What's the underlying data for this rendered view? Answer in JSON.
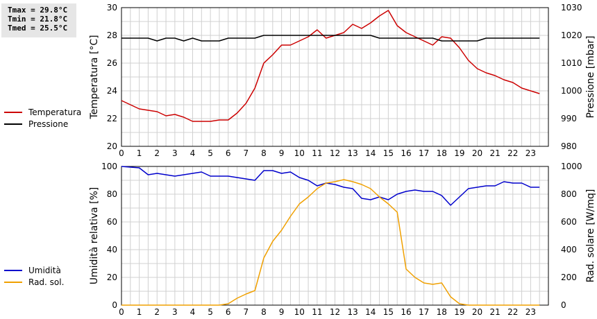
{
  "stats": {
    "tmax": "Tmax = 29.8°C",
    "tmin": "Tmin = 21.8°C",
    "tmed": "Tmed = 25.5°C"
  },
  "legend_top": [
    {
      "label": "Temperatura",
      "color": "#cc0000"
    },
    {
      "label": "Pressione",
      "color": "#000000"
    }
  ],
  "legend_bottom": [
    {
      "label": "Umidità",
      "color": "#0000cc"
    },
    {
      "label": "Rad. sol.",
      "color": "#f0a000"
    }
  ],
  "chart_data": [
    {
      "type": "line",
      "ylabel": "Temperatura [°C]",
      "y2label": "Pressione [mbar]",
      "xlim": [
        0,
        24
      ],
      "ylim": [
        20,
        30
      ],
      "y2lim": [
        980,
        1030
      ],
      "xticks": [
        "0",
        "1",
        "2",
        "3",
        "4",
        "5",
        "6",
        "7",
        "8",
        "9",
        "10",
        "11",
        "12",
        "13",
        "14",
        "15",
        "16",
        "17",
        "18",
        "19",
        "20",
        "21",
        "22",
        "23"
      ],
      "yticks": [
        "20",
        "22",
        "24",
        "26",
        "28",
        "30"
      ],
      "y2ticks": [
        "980",
        "990",
        "1000",
        "1010",
        "1020",
        "1030"
      ],
      "grid": true,
      "series": [
        {
          "name": "Temperatura",
          "axis": "left",
          "color": "#cc0000",
          "x": [
            0,
            0.5,
            1,
            1.5,
            2,
            2.5,
            3,
            3.5,
            4,
            4.5,
            5,
            5.5,
            6,
            6.5,
            7,
            7.5,
            8,
            8.5,
            9,
            9.5,
            10,
            10.5,
            11,
            11.5,
            12,
            12.5,
            13,
            13.5,
            14,
            14.5,
            15,
            15.5,
            16,
            16.5,
            17,
            17.5,
            18,
            18.5,
            19,
            19.5,
            20,
            20.5,
            21,
            21.5,
            22,
            22.5,
            23,
            23.5
          ],
          "values": [
            23.3,
            23.0,
            22.7,
            22.6,
            22.5,
            22.2,
            22.3,
            22.1,
            21.8,
            21.8,
            21.8,
            21.9,
            21.9,
            22.4,
            23.1,
            24.2,
            26.0,
            26.6,
            27.3,
            27.3,
            27.6,
            27.9,
            28.4,
            27.8,
            28.0,
            28.2,
            28.8,
            28.5,
            28.9,
            29.4,
            29.8,
            28.7,
            28.2,
            27.9,
            27.6,
            27.3,
            27.9,
            27.8,
            27.1,
            26.2,
            25.6,
            25.3,
            25.1,
            24.8,
            24.6,
            24.2,
            24.0,
            23.8
          ]
        },
        {
          "name": "Pressione",
          "axis": "right",
          "color": "#000000",
          "x": [
            0,
            1.5,
            2,
            2.5,
            3,
            3.5,
            4,
            4.5,
            5,
            5.5,
            6,
            6.5,
            7,
            7.5,
            8,
            8.5,
            9,
            9.5,
            10,
            10.5,
            11,
            11.5,
            12,
            12.5,
            13,
            13.5,
            14,
            14.5,
            15,
            15.5,
            16,
            16.5,
            17,
            17.5,
            18,
            18.5,
            19,
            19.5,
            20,
            20.5,
            21,
            21.5,
            22,
            22.5,
            23,
            23.5
          ],
          "values": [
            1019,
            1019,
            1018,
            1019,
            1019,
            1018,
            1019,
            1018,
            1018,
            1018,
            1019,
            1019,
            1019,
            1019,
            1020,
            1020,
            1020,
            1020,
            1020,
            1020,
            1020,
            1020,
            1020,
            1020,
            1020,
            1020,
            1020,
            1019,
            1019,
            1019,
            1019,
            1019,
            1019,
            1019,
            1018,
            1018,
            1018,
            1018,
            1018,
            1019,
            1019,
            1019,
            1019,
            1019,
            1019,
            1019
          ]
        }
      ]
    },
    {
      "type": "line",
      "ylabel": "Umidità relativa [%]",
      "y2label": "Rad. solare [W/mq]",
      "xlim": [
        0,
        24
      ],
      "ylim": [
        0,
        100
      ],
      "y2lim": [
        0,
        1000
      ],
      "xticks": [
        "0",
        "1",
        "2",
        "3",
        "4",
        "5",
        "6",
        "7",
        "8",
        "9",
        "10",
        "11",
        "12",
        "13",
        "14",
        "15",
        "16",
        "17",
        "18",
        "19",
        "20",
        "21",
        "22",
        "23"
      ],
      "yticks": [
        "0",
        "20",
        "40",
        "60",
        "80",
        "100"
      ],
      "y2ticks": [
        "0",
        "200",
        "400",
        "600",
        "800",
        "1000"
      ],
      "grid": true,
      "series": [
        {
          "name": "Umidità",
          "axis": "left",
          "color": "#0000cc",
          "x": [
            0,
            1,
            1.5,
            2,
            2.5,
            3,
            3.5,
            4,
            4.5,
            5,
            5.5,
            6,
            6.5,
            7,
            7.5,
            8,
            8.5,
            9,
            9.5,
            10,
            10.5,
            11,
            11.5,
            12,
            12.5,
            13,
            13.5,
            14,
            14.5,
            15,
            15.5,
            16,
            16.5,
            17,
            17.5,
            18,
            18.5,
            19,
            19.5,
            20,
            20.5,
            21,
            21.5,
            22,
            22.5,
            23,
            23.5
          ],
          "values": [
            100,
            99,
            94,
            95,
            94,
            93,
            94,
            95,
            96,
            93,
            93,
            93,
            92,
            91,
            90,
            97,
            97,
            95,
            96,
            92,
            90,
            86,
            88,
            87,
            85,
            84,
            77,
            76,
            78,
            76,
            80,
            82,
            83,
            82,
            82,
            79,
            72,
            78,
            84,
            85,
            86,
            86,
            89,
            88,
            88,
            85,
            85
          ]
        },
        {
          "name": "Rad. sol.",
          "axis": "right",
          "color": "#f0a000",
          "x": [
            0,
            5.5,
            6,
            6.5,
            7,
            7.5,
            8,
            8.5,
            9,
            9.5,
            10,
            10.5,
            11,
            11.5,
            12,
            12.5,
            13,
            13.5,
            14,
            14.5,
            15,
            15.5,
            16,
            16.5,
            17,
            17.5,
            18,
            18.5,
            19,
            19.5,
            20,
            20.5,
            21,
            21.5,
            22,
            22.5,
            23,
            23.5
          ],
          "values": [
            0,
            0,
            10,
            50,
            80,
            105,
            340,
            460,
            540,
            640,
            730,
            780,
            840,
            880,
            890,
            905,
            890,
            870,
            840,
            780,
            730,
            670,
            260,
            200,
            160,
            150,
            160,
            60,
            10,
            0,
            0,
            0,
            0,
            0,
            0,
            0,
            0,
            0
          ]
        }
      ]
    }
  ]
}
